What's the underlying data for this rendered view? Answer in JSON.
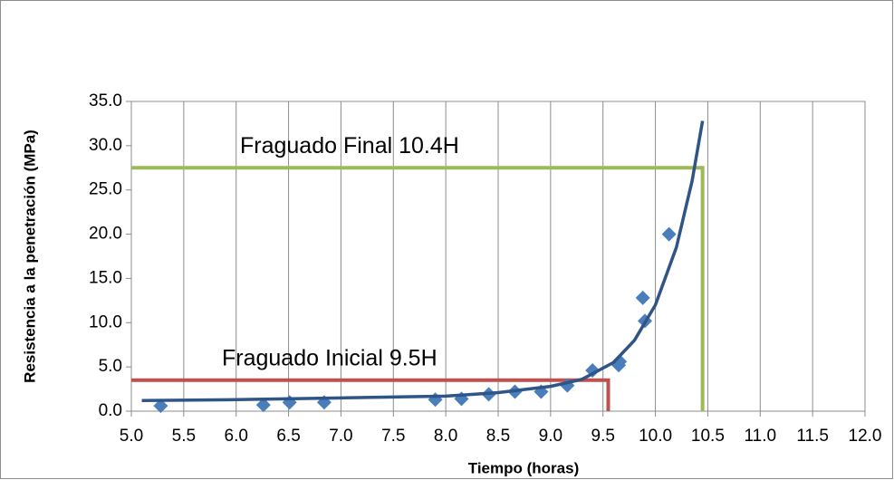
{
  "chart_data": {
    "type": "scatter",
    "x_label": "Tiempo (horas)",
    "y_label": "Resistencia a la penetración (MPa)",
    "xlim": [
      5.0,
      12.0
    ],
    "ylim": [
      0,
      35
    ],
    "xticks": [
      {
        "value": 5.0,
        "label": "5.0"
      },
      {
        "value": 5.5,
        "label": "5.5"
      },
      {
        "value": 6.0,
        "label": "6.0"
      },
      {
        "value": 6.5,
        "label": "6.5"
      },
      {
        "value": 7.0,
        "label": "7.0"
      },
      {
        "value": 7.5,
        "label": "7.5"
      },
      {
        "value": 8.0,
        "label": "8.0"
      },
      {
        "value": 8.5,
        "label": "8.5"
      },
      {
        "value": 9.0,
        "label": "9.0"
      },
      {
        "value": 9.5,
        "label": "9.5"
      },
      {
        "value": 10.0,
        "label": "10.0"
      },
      {
        "value": 10.5,
        "label": "10.5"
      },
      {
        "value": 11.0,
        "label": "11.0"
      },
      {
        "value": 11.5,
        "label": "11.5"
      },
      {
        "value": 12.0,
        "label": "12.0"
      }
    ],
    "yticks": [
      {
        "value": 0,
        "label": "0.0"
      },
      {
        "value": 5,
        "label": "5.0"
      },
      {
        "value": 10,
        "label": "10.0"
      },
      {
        "value": 15,
        "label": "15.0"
      },
      {
        "value": 20,
        "label": "20.0"
      },
      {
        "value": 25,
        "label": "25.0"
      },
      {
        "value": 30,
        "label": "30.0"
      },
      {
        "value": 35,
        "label": "35.0"
      }
    ],
    "grid": "x",
    "series": [
      {
        "color": "#4a7ebb",
        "x": [
          5.28,
          6.26,
          6.51,
          6.84,
          7.9,
          8.15,
          8.41,
          8.66,
          8.91,
          9.16,
          9.4,
          9.65,
          9.66,
          9.88,
          9.9,
          10.13
        ],
        "values": [
          0.6,
          0.7,
          1.0,
          1.0,
          1.3,
          1.4,
          1.9,
          2.2,
          2.2,
          2.9,
          4.6,
          5.2,
          5.6,
          12.8,
          10.2,
          20.0
        ]
      },
      {
        "type": "line",
        "color": "#2f5487",
        "x": [
          5.1,
          6.0,
          7.0,
          8.0,
          8.5,
          9.0,
          9.3,
          9.6,
          9.8,
          10.0,
          10.2,
          10.35,
          10.45
        ],
        "values": [
          1.2,
          1.3,
          1.5,
          1.7,
          2.1,
          2.8,
          3.6,
          5.5,
          8.0,
          12.0,
          18.5,
          26.0,
          32.8
        ]
      }
    ],
    "reference_lines": [
      {
        "label": "Fraguado Final 10.4H",
        "x": 10.45,
        "y": 27.5,
        "color": "#9bbb59"
      },
      {
        "label": "Fraguado Inicial 9.5H",
        "x": 9.55,
        "y": 3.5,
        "color": "#c0504d"
      }
    ]
  }
}
